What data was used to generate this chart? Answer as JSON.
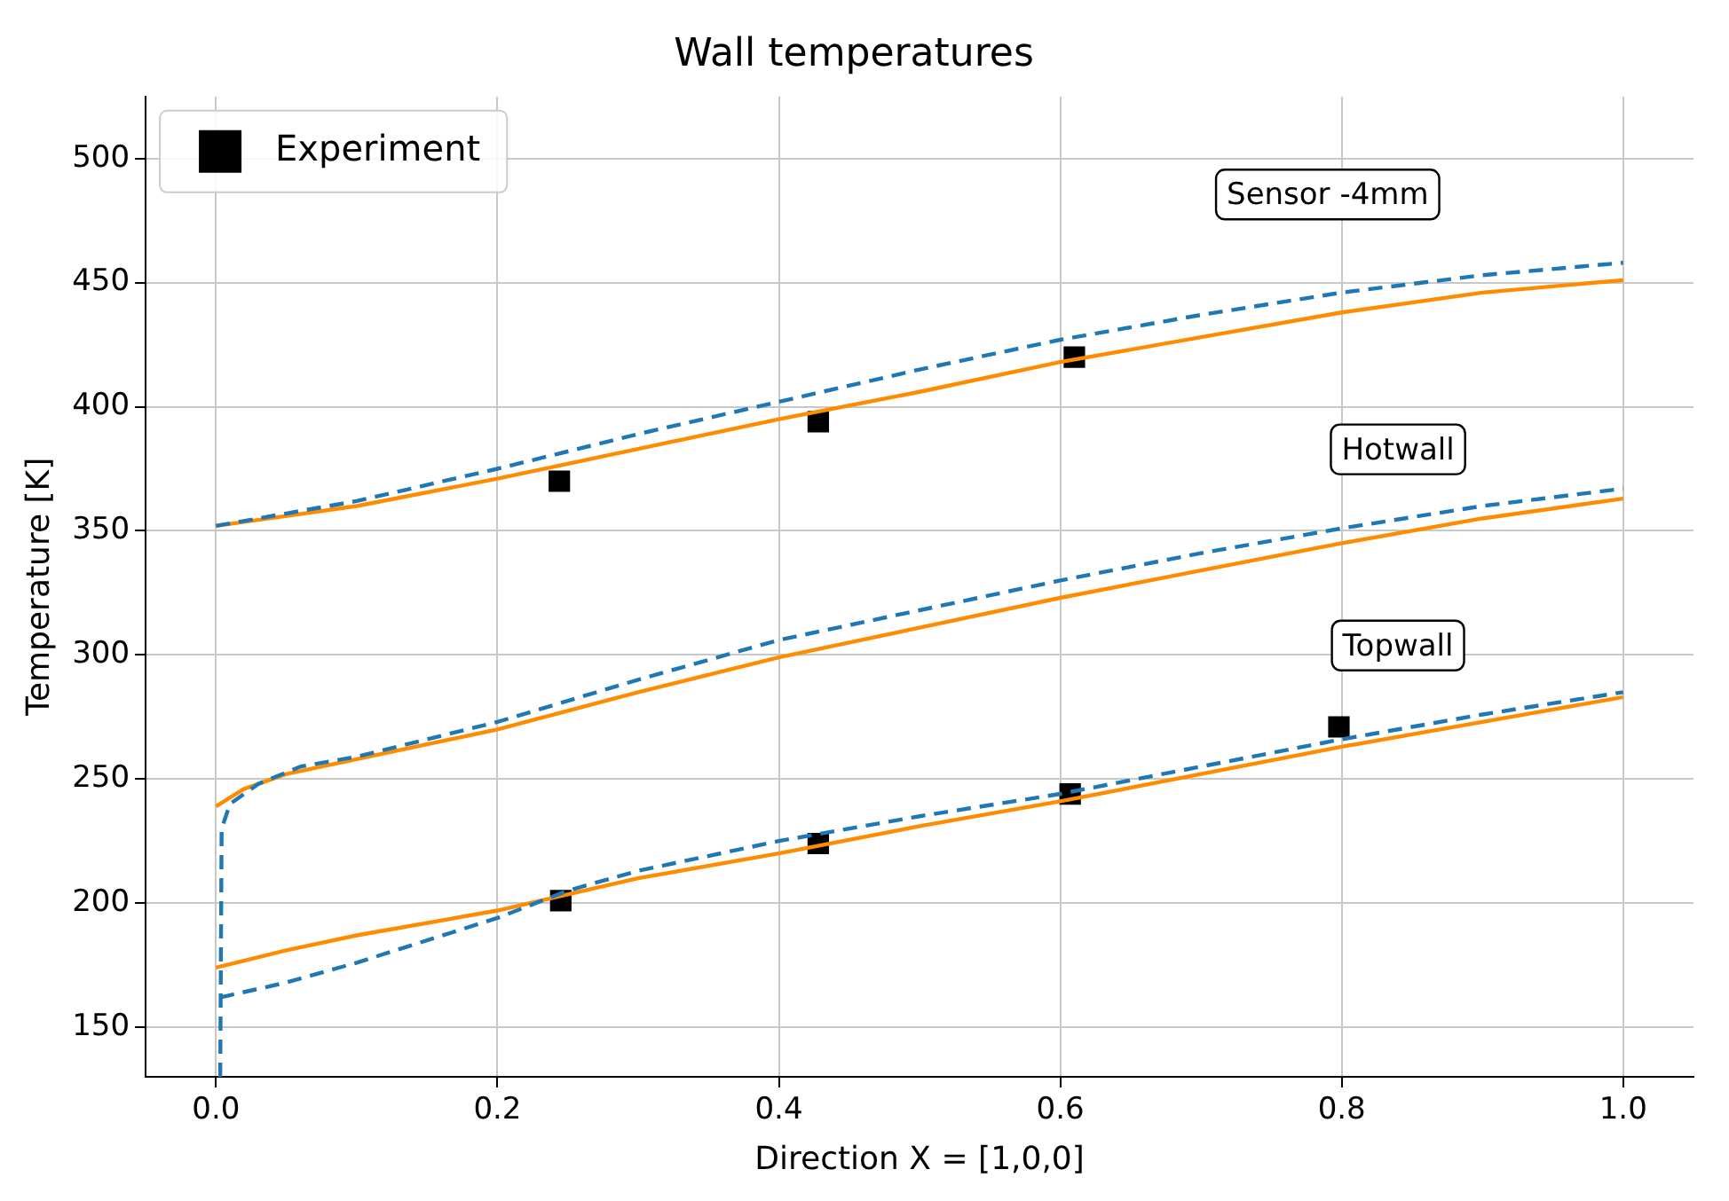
{
  "chart_data": {
    "type": "line",
    "title": "Wall temperatures",
    "xlabel": "Direction X = [1,0,0]",
    "ylabel": "Temperature [K]",
    "xlim": [
      -0.05,
      1.05
    ],
    "ylim": [
      130,
      525
    ],
    "xticks": [
      {
        "value": 0,
        "label": "0.0"
      },
      0.2,
      0.4,
      0.6,
      0.8,
      {
        "value": 1,
        "label": "1.0"
      }
    ],
    "yticks": [
      150,
      200,
      250,
      300,
      350,
      400,
      450,
      500
    ],
    "grid": true,
    "legend": "top left",
    "series": [
      {
        "color": "#1f77b4",
        "line_style": "dashed",
        "marker": "none",
        "x": [
          0,
          0.1,
          0.2,
          0.3,
          0.4,
          0.5,
          0.6,
          0.7,
          0.8,
          0.9,
          1.0
        ],
        "values": [
          352,
          362,
          375,
          389,
          402,
          415,
          427,
          437,
          446,
          453,
          458
        ]
      },
      {
        "color": "#ff8c00",
        "line_style": "solid",
        "marker": "none",
        "x": [
          0,
          0.1,
          0.2,
          0.3,
          0.4,
          0.5,
          0.6,
          0.7,
          0.8,
          0.9,
          1.0
        ],
        "values": [
          352,
          360,
          371,
          383,
          395,
          406,
          418,
          428,
          438,
          446,
          451
        ]
      },
      {
        "color": "#1f77b4",
        "line_style": "dashed",
        "marker": "none",
        "x": [
          0.003,
          0.004,
          0.01,
          0.03,
          0.06,
          0.1,
          0.2,
          0.3,
          0.4,
          0.5,
          0.6,
          0.7,
          0.8,
          0.9,
          1.0
        ],
        "values": [
          130,
          230,
          240,
          248,
          255,
          259,
          273,
          290,
          306,
          318,
          330,
          341,
          351,
          360,
          367
        ]
      },
      {
        "color": "#ff8c00",
        "line_style": "solid",
        "marker": "none",
        "x": [
          0,
          0.02,
          0.05,
          0.1,
          0.2,
          0.3,
          0.4,
          0.5,
          0.6,
          0.7,
          0.8,
          0.9,
          1.0
        ],
        "values": [
          239,
          246,
          252,
          258,
          270,
          285,
          299,
          311,
          323,
          334,
          345,
          355,
          363
        ]
      },
      {
        "color": "#1f77b4",
        "line_style": "dashed",
        "marker": "none",
        "x": [
          0.003,
          0.05,
          0.1,
          0.2,
          0.25,
          0.3,
          0.4,
          0.5,
          0.6,
          0.7,
          0.8,
          0.9,
          1.0
        ],
        "values": [
          162,
          168,
          176,
          194,
          205,
          213,
          225,
          235,
          244,
          255,
          266,
          276,
          285
        ]
      },
      {
        "color": "#ff8c00",
        "line_style": "solid",
        "marker": "none",
        "x": [
          0,
          0.05,
          0.1,
          0.2,
          0.3,
          0.4,
          0.5,
          0.6,
          0.7,
          0.8,
          0.9,
          1.0
        ],
        "values": [
          174,
          181,
          187,
          197,
          210,
          220,
          231,
          241,
          252,
          263,
          273,
          283
        ]
      },
      {
        "type": "scatter",
        "name": "Experiment",
        "color": "#000000",
        "marker": "square",
        "x": [
          0.244,
          0.428,
          0.61,
          0.245,
          0.428,
          0.607,
          0.798
        ],
        "values": [
          370,
          394,
          420,
          201,
          224,
          244,
          271
        ]
      }
    ],
    "annotations": [
      "Sensor -4mm",
      "Hotwall",
      "Topwall"
    ]
  }
}
